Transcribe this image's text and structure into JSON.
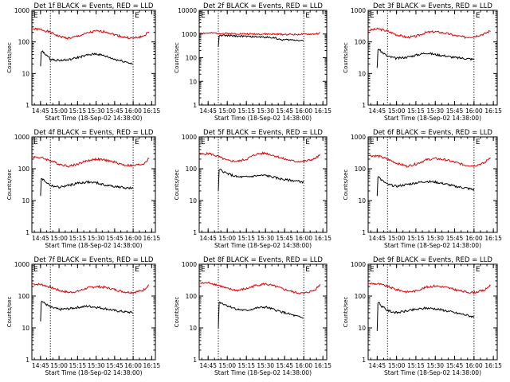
{
  "chart_data": [
    {
      "type": "line",
      "title": "Det 1f BLACK = Events, RED = LLD",
      "xlabel": "Start Time (18-Sep-02 14:38:00)",
      "ylabel": "Counts/sec",
      "xticks": [
        "14:45",
        "15:00",
        "15:15",
        "15:30",
        "15:45",
        "16:00",
        "16:15"
      ],
      "yticks": [
        "1",
        "10",
        "100",
        "1000"
      ],
      "ylim": [
        1,
        1000
      ],
      "ylog": true,
      "events_mark": "E",
      "series": [
        {
          "name": "RED",
          "color": "#dd0000",
          "x": [
            0,
            8,
            15,
            22,
            30,
            37,
            45,
            52,
            60,
            67,
            75,
            82,
            90,
            95
          ],
          "values": [
            260,
            245,
            200,
            150,
            130,
            150,
            190,
            220,
            210,
            170,
            140,
            130,
            150,
            210
          ]
        },
        {
          "name": "BLACK",
          "color": "#000000",
          "x": [
            7,
            7.5,
            8,
            10,
            15,
            22,
            30,
            37,
            45,
            52,
            60,
            67,
            75,
            82
          ],
          "values": [
            17,
            48,
            50,
            45,
            28,
            26,
            27,
            32,
            38,
            42,
            35,
            28,
            24,
            20
          ]
        }
      ]
    },
    {
      "type": "line",
      "title": "Det 2f BLACK = Events, RED = LLD",
      "xlabel": "Start Time (18-Sep-02 14:38:00)",
      "ylabel": "Counts/sec",
      "xticks": [
        "14:45",
        "15:00",
        "15:15",
        "15:30",
        "15:45",
        "16:00",
        "16:15"
      ],
      "yticks": [
        "1",
        "10",
        "100",
        "1000"
      ],
      "ylim": [
        1,
        10000
      ],
      "ylog": true,
      "events_mark": "E",
      "series": [
        {
          "name": "RED",
          "color": "#dd0000",
          "x": [
            0,
            15,
            30,
            45,
            60,
            75,
            90,
            95
          ],
          "values": [
            1100,
            1080,
            1030,
            1000,
            980,
            960,
            990,
            1080
          ]
        },
        {
          "name": "BLACK",
          "color": "#000000",
          "x": [
            15,
            15.5,
            16,
            30,
            45,
            60,
            62,
            75,
            82
          ],
          "values": [
            300,
            800,
            880,
            820,
            760,
            700,
            580,
            560,
            530
          ]
        }
      ]
    },
    {
      "type": "line",
      "title": "Det 3f BLACK = Events, RED = LLD",
      "xlabel": "Start Time (18-Sep-02 14:38:00)",
      "ylabel": "Counts/sec",
      "xticks": [
        "14:45",
        "15:00",
        "15:15",
        "15:30",
        "15:45",
        "16:00",
        "16:15"
      ],
      "yticks": [
        "1",
        "10",
        "100",
        "1000"
      ],
      "ylim": [
        1,
        1000
      ],
      "ylog": true,
      "events_mark": "E",
      "series": [
        {
          "name": "RED",
          "color": "#dd0000",
          "x": [
            0,
            8,
            15,
            22,
            30,
            37,
            45,
            52,
            60,
            67,
            75,
            82,
            90,
            95
          ],
          "values": [
            230,
            260,
            220,
            170,
            140,
            150,
            200,
            210,
            190,
            160,
            140,
            150,
            180,
            230
          ]
        },
        {
          "name": "BLACK",
          "color": "#000000",
          "x": [
            7,
            7.5,
            8,
            10,
            15,
            22,
            30,
            37,
            45,
            52,
            60,
            67,
            75,
            82
          ],
          "values": [
            15,
            55,
            60,
            50,
            35,
            30,
            33,
            38,
            45,
            40,
            36,
            32,
            30,
            28
          ]
        }
      ]
    },
    {
      "type": "line",
      "title": "Det 4f BLACK = Events, RED = LLD",
      "xlabel": "Start Time (18-Sep-02 14:38:00)",
      "ylabel": "Counts/sec",
      "xticks": [
        "14:45",
        "15:00",
        "15:15",
        "15:30",
        "15:45",
        "16:00",
        "16:15"
      ],
      "yticks": [
        "1",
        "10",
        "100",
        "1000"
      ],
      "ylim": [
        1,
        1000
      ],
      "ylog": true,
      "events_mark": "E",
      "series": [
        {
          "name": "RED",
          "color": "#dd0000",
          "x": [
            0,
            8,
            15,
            22,
            30,
            37,
            45,
            52,
            60,
            67,
            75,
            82,
            90,
            95
          ],
          "values": [
            240,
            220,
            180,
            140,
            120,
            140,
            180,
            200,
            185,
            160,
            130,
            125,
            140,
            210
          ]
        },
        {
          "name": "BLACK",
          "color": "#000000",
          "x": [
            7,
            7.5,
            8,
            10,
            15,
            22,
            30,
            37,
            45,
            52,
            60,
            67,
            75,
            82
          ],
          "values": [
            14,
            48,
            50,
            42,
            30,
            26,
            30,
            35,
            38,
            36,
            30,
            28,
            25,
            24
          ]
        }
      ]
    },
    {
      "type": "line",
      "title": "Det 5f BLACK = Events, RED = LLD",
      "xlabel": "Start Time (18-Sep-02 14:38:00)",
      "ylabel": "Counts/sec",
      "xticks": [
        "14:45",
        "15:00",
        "15:15",
        "15:30",
        "15:45",
        "16:00",
        "16:15"
      ],
      "yticks": [
        "1",
        "10",
        "100",
        "1000"
      ],
      "ylim": [
        1,
        1000
      ],
      "ylog": true,
      "events_mark": "E",
      "series": [
        {
          "name": "RED",
          "color": "#dd0000",
          "x": [
            0,
            8,
            15,
            22,
            30,
            37,
            45,
            52,
            60,
            67,
            75,
            82,
            90,
            95
          ],
          "values": [
            280,
            300,
            240,
            180,
            170,
            200,
            290,
            310,
            250,
            200,
            170,
            170,
            200,
            270
          ]
        },
        {
          "name": "BLACK",
          "color": "#000000",
          "x": [
            15,
            15.5,
            16,
            22,
            30,
            37,
            45,
            52,
            60,
            67,
            75,
            82
          ],
          "values": [
            20,
            90,
            95,
            70,
            55,
            55,
            60,
            62,
            52,
            45,
            42,
            38
          ]
        }
      ]
    },
    {
      "type": "line",
      "title": "Det 6f BLACK = Events, RED = LLD",
      "xlabel": "Start Time (18-Sep-02 14:38:00)",
      "ylabel": "Counts/sec",
      "xticks": [
        "14:45",
        "15:00",
        "15:15",
        "15:30",
        "15:45",
        "16:00",
        "16:15"
      ],
      "yticks": [
        "1",
        "10",
        "100",
        "1000"
      ],
      "ylim": [
        1,
        1000
      ],
      "ylog": true,
      "events_mark": "E",
      "series": [
        {
          "name": "RED",
          "color": "#dd0000",
          "x": [
            0,
            8,
            15,
            22,
            30,
            37,
            45,
            52,
            60,
            67,
            75,
            82,
            90,
            95
          ],
          "values": [
            260,
            250,
            200,
            150,
            120,
            140,
            190,
            210,
            190,
            160,
            130,
            125,
            150,
            240
          ]
        },
        {
          "name": "BLACK",
          "color": "#000000",
          "x": [
            7,
            7.5,
            8,
            10,
            15,
            22,
            30,
            37,
            45,
            52,
            60,
            67,
            75,
            82
          ],
          "values": [
            14,
            55,
            58,
            45,
            32,
            28,
            32,
            36,
            40,
            38,
            33,
            28,
            25,
            22
          ]
        }
      ]
    },
    {
      "type": "line",
      "title": "Det 7f BLACK = Events, RED = LLD",
      "xlabel": "Start Time (18-Sep-02 14:38:00)",
      "ylabel": "Counts/sec",
      "xticks": [
        "14:45",
        "15:00",
        "15:15",
        "15:30",
        "15:45",
        "16:00",
        "16:15"
      ],
      "yticks": [
        "1",
        "10",
        "100",
        "1000"
      ],
      "ylim": [
        1,
        1000
      ],
      "ylog": true,
      "events_mark": "E",
      "series": [
        {
          "name": "RED",
          "color": "#dd0000",
          "x": [
            0,
            8,
            15,
            22,
            30,
            37,
            45,
            52,
            60,
            67,
            75,
            82,
            90,
            95
          ],
          "values": [
            240,
            230,
            190,
            150,
            130,
            140,
            180,
            200,
            185,
            160,
            135,
            130,
            150,
            230
          ]
        },
        {
          "name": "BLACK",
          "color": "#000000",
          "x": [
            7,
            7.5,
            8,
            10,
            15,
            22,
            30,
            37,
            45,
            52,
            60,
            67,
            75,
            82
          ],
          "values": [
            16,
            65,
            70,
            60,
            45,
            38,
            40,
            44,
            48,
            45,
            40,
            35,
            32,
            30
          ]
        }
      ]
    },
    {
      "type": "line",
      "title": "Det 8f BLACK = Events, RED = LLD",
      "xlabel": "Start Time (18-Sep-02 14:38:00)",
      "ylabel": "Counts/sec",
      "xticks": [
        "14:45",
        "15:00",
        "15:15",
        "15:30",
        "15:45",
        "16:00",
        "16:15"
      ],
      "yticks": [
        "1",
        "10",
        "100",
        "1000"
      ],
      "ylim": [
        1,
        1000
      ],
      "ylog": true,
      "events_mark": "E",
      "series": [
        {
          "name": "RED",
          "color": "#dd0000",
          "x": [
            0,
            8,
            15,
            22,
            30,
            37,
            45,
            52,
            60,
            67,
            75,
            82,
            90,
            95
          ],
          "values": [
            250,
            260,
            220,
            170,
            150,
            170,
            220,
            240,
            200,
            160,
            130,
            120,
            150,
            230
          ]
        },
        {
          "name": "BLACK",
          "color": "#000000",
          "x": [
            15,
            15.5,
            16,
            22,
            30,
            37,
            45,
            52,
            60,
            67,
            75,
            82
          ],
          "values": [
            10,
            60,
            65,
            50,
            38,
            35,
            42,
            45,
            36,
            30,
            24,
            20
          ]
        }
      ]
    },
    {
      "type": "line",
      "title": "Det 9f BLACK = Events, RED = LLD",
      "xlabel": "Start Time (18-Sep-02 14:38:00)",
      "ylabel": "Counts/sec",
      "xticks": [
        "14:45",
        "15:00",
        "15:15",
        "15:30",
        "15:45",
        "16:00",
        "16:15"
      ],
      "yticks": [
        "1",
        "10",
        "100",
        "1000"
      ],
      "ylim": [
        1,
        1000
      ],
      "ylog": true,
      "events_mark": "E",
      "series": [
        {
          "name": "RED",
          "color": "#dd0000",
          "x": [
            0,
            8,
            15,
            22,
            30,
            37,
            45,
            52,
            60,
            67,
            75,
            82,
            90,
            95
          ],
          "values": [
            250,
            240,
            200,
            160,
            135,
            145,
            190,
            210,
            190,
            160,
            135,
            130,
            150,
            230
          ]
        },
        {
          "name": "BLACK",
          "color": "#000000",
          "x": [
            7,
            7.5,
            8,
            10,
            15,
            22,
            30,
            37,
            45,
            52,
            60,
            67,
            75,
            82
          ],
          "values": [
            8,
            60,
            65,
            50,
            35,
            30,
            34,
            38,
            42,
            40,
            35,
            30,
            26,
            22
          ]
        }
      ]
    }
  ]
}
